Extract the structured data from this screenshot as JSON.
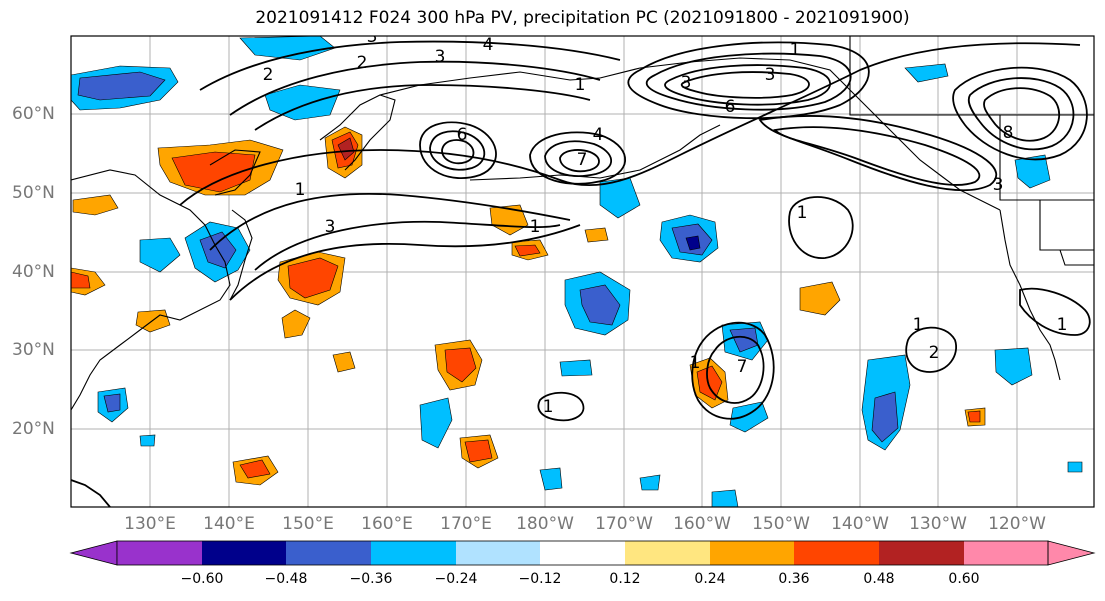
{
  "title": "2021091412 F024 300 hPa PV, precipitation PC (2021091800 - 2021091900)",
  "map": {
    "lat_labels": [
      "60°N",
      "50°N",
      "40°N",
      "30°N",
      "20°N"
    ],
    "lon_labels": [
      "130°E",
      "140°E",
      "150°E",
      "160°E",
      "170°E",
      "180°W",
      "170°W",
      "160°W",
      "150°W",
      "140°W",
      "130°W",
      "120°W"
    ],
    "lon_range": [
      120,
      250
    ],
    "lat_range": [
      10,
      70
    ],
    "contour_labels": [
      "1",
      "2",
      "3",
      "4",
      "6",
      "7",
      "8"
    ]
  },
  "colorbar": {
    "ticks": [
      "−0.60",
      "−0.48",
      "−0.36",
      "−0.24",
      "−0.12",
      "0.12",
      "0.24",
      "0.36",
      "0.48",
      "0.60"
    ],
    "colors": [
      "#9932cc",
      "#00008b",
      "#3a5fcd",
      "#00bfff",
      "#b0e2ff",
      "#ffffff",
      "#ffe680",
      "#ffa500",
      "#ff4500",
      "#b22222",
      "#ff88aa"
    ]
  }
}
